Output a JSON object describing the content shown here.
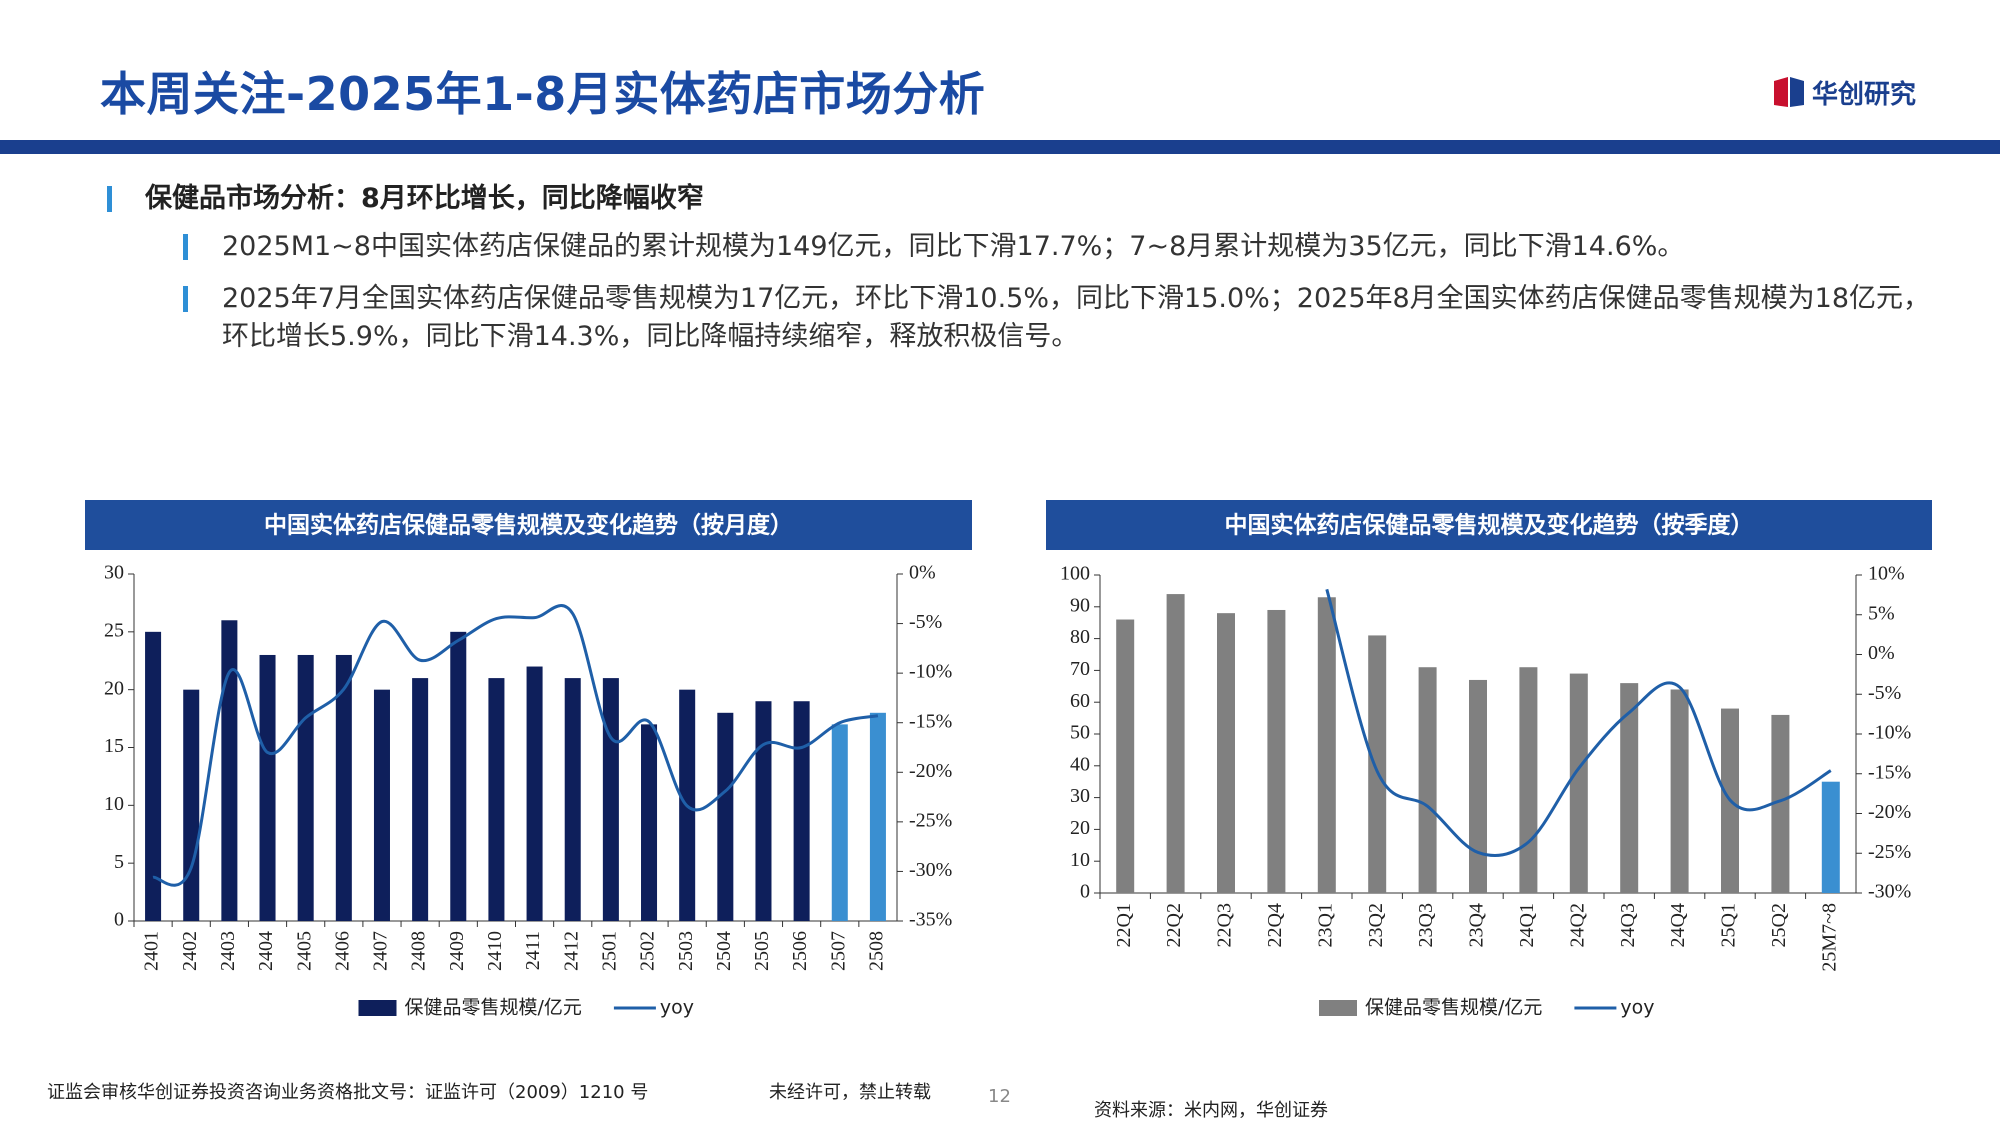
{
  "header": {
    "title": "本周关注-2025年1-8月实体药店市场分析",
    "logo": "华创研究"
  },
  "section": {
    "heading": "保健品市场分析：8月环比增长，同比降幅收窄",
    "bullets": [
      "2025M1~8中国实体药店保健品的累计规模为149亿元，同比下滑17.7%；7~8月累计规模为35亿元，同比下滑14.6%。",
      "2025年7月全国实体药店保健品零售规模为17亿元，环比下滑10.5%，同比下滑15.0%；2025年8月全国实体药店保健品零售规模为18亿元，环比增长5.9%，同比下滑14.3%，同比降幅持续缩窄，释放积极信号。"
    ]
  },
  "chart_data": [
    {
      "type": "bar_line",
      "title": "中国实体药店保健品零售规模及变化趋势（按月度）",
      "categories": [
        "2401",
        "2402",
        "2403",
        "2404",
        "2405",
        "2406",
        "2407",
        "2408",
        "2409",
        "2410",
        "2411",
        "2412",
        "2501",
        "2502",
        "2503",
        "2504",
        "2505",
        "2506",
        "2507",
        "2508"
      ],
      "series": [
        {
          "name": "保健品零售规模/亿元",
          "color": "#0e1f5b",
          "colors": [
            "#0e1f5b",
            "#0e1f5b",
            "#0e1f5b",
            "#0e1f5b",
            "#0e1f5b",
            "#0e1f5b",
            "#0e1f5b",
            "#0e1f5b",
            "#0e1f5b",
            "#0e1f5b",
            "#0e1f5b",
            "#0e1f5b",
            "#0e1f5b",
            "#0e1f5b",
            "#0e1f5b",
            "#0e1f5b",
            "#0e1f5b",
            "#0e1f5b",
            "#3a8fd1",
            "#3a8fd1"
          ],
          "values": [
            25,
            20,
            26,
            23,
            23,
            23,
            20,
            21,
            25,
            21,
            22,
            21,
            21,
            17,
            20,
            18,
            19,
            19,
            17,
            18
          ]
        },
        {
          "name": "yoy",
          "color": "#1f5fa8",
          "axis": "y2",
          "values": [
            -30.6,
            -29.6,
            -9.9,
            -18,
            -14.5,
            -11.6,
            -4.8,
            -8.7,
            -6.7,
            -4.5,
            -4.4,
            -4.0,
            -16.5,
            -14.9,
            -23.4,
            -21.9,
            -17.2,
            -17.5,
            -15.0,
            -14.3
          ]
        }
      ],
      "ylim": [
        0,
        30
      ],
      "yticks": [
        0,
        5,
        10,
        15,
        20,
        25,
        30
      ],
      "y2lim": [
        -35,
        0
      ],
      "y2ticks": [
        {
          "value": 0,
          "label": "0%"
        },
        {
          "value": -5,
          "label": "-5%"
        },
        {
          "value": -10,
          "label": "-10%"
        },
        {
          "value": -15,
          "label": "-15%"
        },
        {
          "value": -20,
          "label": "-20%"
        },
        {
          "value": -25,
          "label": "-25%"
        },
        {
          "value": -30,
          "label": "-30%"
        },
        {
          "value": -35,
          "label": "-35%"
        }
      ]
    },
    {
      "type": "bar_line",
      "title": "中国实体药店保健品零售规模及变化趋势（按季度）",
      "categories": [
        "22Q1",
        "22Q2",
        "22Q3",
        "22Q4",
        "23Q1",
        "23Q2",
        "23Q3",
        "23Q4",
        "24Q1",
        "24Q2",
        "24Q3",
        "24Q4",
        "25Q1",
        "25Q2",
        "25M7~8"
      ],
      "series": [
        {
          "name": "保健品零售规模/亿元",
          "color": "#808080",
          "colors": [
            "#808080",
            "#808080",
            "#808080",
            "#808080",
            "#808080",
            "#808080",
            "#808080",
            "#808080",
            "#808080",
            "#808080",
            "#808080",
            "#808080",
            "#808080",
            "#808080",
            "#3a8fd1"
          ],
          "values": [
            86,
            94,
            88,
            89,
            93,
            81,
            71,
            67,
            71,
            69,
            66,
            64,
            58,
            56,
            35
          ]
        },
        {
          "name": "yoy",
          "color": "#1f5fa8",
          "axis": "y2",
          "values": [
            null,
            null,
            null,
            null,
            8.2,
            -14.7,
            -19.1,
            -24.9,
            -23.6,
            -14.3,
            -7.3,
            -4.1,
            -18.3,
            -18.4,
            -14.6
          ]
        }
      ],
      "ylim": [
        0,
        100
      ],
      "yticks": [
        0,
        10,
        20,
        30,
        40,
        50,
        60,
        70,
        80,
        90,
        100
      ],
      "y2lim": [
        -30,
        10
      ],
      "y2ticks": [
        {
          "value": 10,
          "label": "10%"
        },
        {
          "value": 5,
          "label": "5%"
        },
        {
          "value": 0,
          "label": "0%"
        },
        {
          "value": -5,
          "label": "-5%"
        },
        {
          "value": -10,
          "label": "-10%"
        },
        {
          "value": -15,
          "label": "-15%"
        },
        {
          "value": -20,
          "label": "-20%"
        },
        {
          "value": -25,
          "label": "-25%"
        },
        {
          "value": -30,
          "label": "-30%"
        }
      ]
    }
  ],
  "footer": {
    "license": "证监会审核华创证券投资咨询业务资格批文号：证监许可（2009）1210 号",
    "notice": "未经许可，禁止转载",
    "page": "12",
    "source": "资料来源：米内网，华创证券"
  }
}
